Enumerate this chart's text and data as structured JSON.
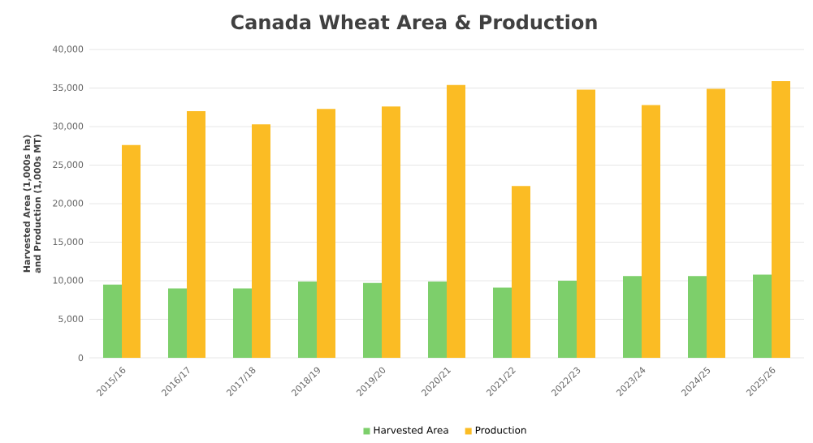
{
  "chart_data": {
    "type": "bar",
    "title": "Canada Wheat Area & Production",
    "ylabel": "Harvested Area (1,000s ha) and Production (1,000s MT)",
    "categories": [
      "2015/16",
      "2016/17",
      "2017/18",
      "2018/19",
      "2019/20",
      "2020/21",
      "2021/22",
      "2022/23",
      "2023/24",
      "2024/25",
      "2025/26"
    ],
    "series": [
      {
        "name": "Harvested Area",
        "color": "#7dcf6b",
        "values": [
          9500,
          9000,
          9000,
          9900,
          9700,
          9900,
          9100,
          10000,
          10600,
          10600,
          10800
        ]
      },
      {
        "name": "Production",
        "color": "#fbbc24",
        "values": [
          27600,
          32000,
          30300,
          32300,
          32600,
          35400,
          22300,
          34800,
          32800,
          34900,
          35900
        ]
      }
    ],
    "ylim": [
      0,
      40000
    ],
    "yticks": [
      {
        "value": 0,
        "label": "0"
      },
      {
        "value": 5000,
        "label": "5,000"
      },
      {
        "value": 10000,
        "label": "10,000"
      },
      {
        "value": 15000,
        "label": "15,000"
      },
      {
        "value": 20000,
        "label": "20,000"
      },
      {
        "value": 25000,
        "label": "25,000"
      },
      {
        "value": 30000,
        "label": "30,000"
      },
      {
        "value": 35000,
        "label": "35,000"
      },
      {
        "value": 40000,
        "label": "40,000"
      }
    ],
    "grid": "y",
    "legend": "bottom"
  }
}
